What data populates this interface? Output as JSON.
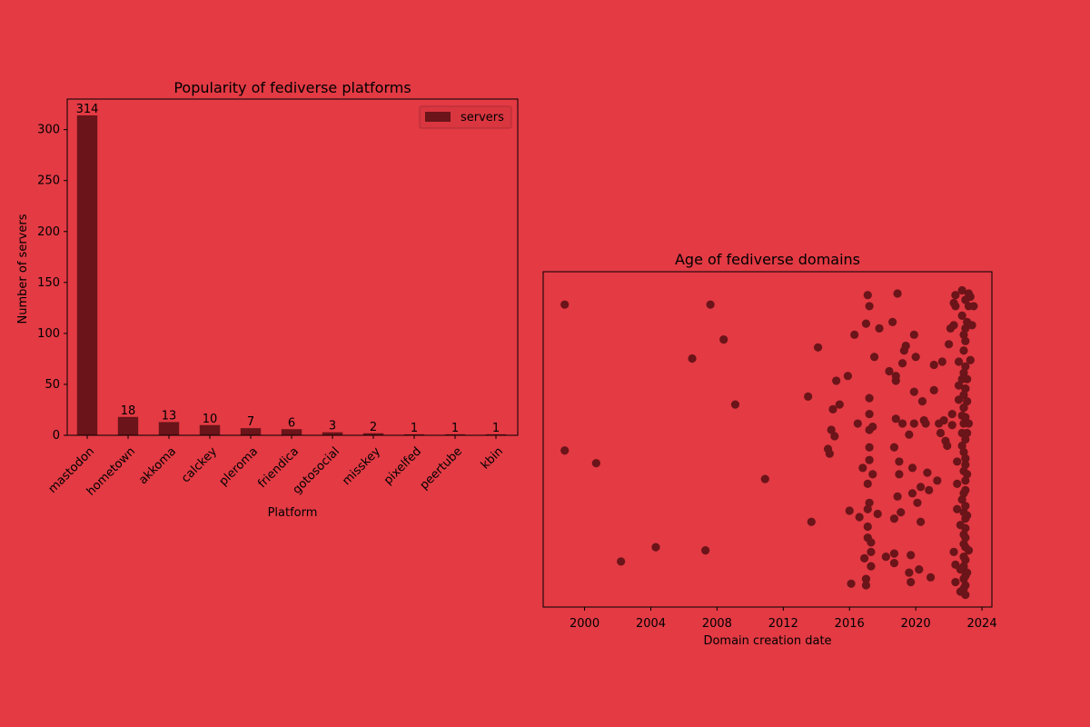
{
  "colors": {
    "background": "#e33a44",
    "mark": "#6b1419",
    "legend_bg": "#d93640"
  },
  "chart_data": [
    {
      "type": "bar",
      "title": "Popularity of fediverse platforms",
      "xlabel": "Platform",
      "ylabel": "Number of servers",
      "categories": [
        "mastodon",
        "hometown",
        "akkoma",
        "calckey",
        "pleroma",
        "friendica",
        "gotosocial",
        "misskey",
        "pixelfed",
        "peertube",
        "kbin"
      ],
      "series": [
        {
          "name": "servers",
          "values": [
            314,
            18,
            13,
            10,
            7,
            6,
            3,
            2,
            1,
            1,
            1
          ]
        }
      ],
      "value_labels": [
        "314",
        "18",
        "13",
        "10",
        "7",
        "6",
        "3",
        "2",
        "1",
        "1",
        "1"
      ],
      "yticks": [
        "0",
        "50",
        "100",
        "150",
        "200",
        "250",
        "300"
      ],
      "ylim": [
        0,
        330
      ],
      "legend": "top-right",
      "grid": false
    },
    {
      "type": "scatter",
      "title": "Age of fediverse domains",
      "xlabel": "Domain creation date",
      "ylabel": "",
      "xticks": [
        "2000",
        "2004",
        "2008",
        "2012",
        "2016",
        "2020",
        "2024"
      ],
      "xlim": [
        1997.5,
        2024.6
      ],
      "y_axis_visible": false,
      "grid": false,
      "x": [
        1998.8,
        1998.8,
        2000.7,
        2002.2,
        2004.3,
        2006.5,
        2007.3,
        2007.6,
        2008.4,
        2009.1,
        2010.9,
        2013.5,
        2013.7,
        2014.1,
        2014.7,
        2014.8,
        2014.9,
        2015.0,
        2015.1,
        2015.2,
        2015.4,
        2015.9,
        2016.0,
        2016.1,
        2016.3,
        2016.5,
        2016.6,
        2016.8,
        2016.9,
        2017.0,
        2017.1,
        2017.2,
        2017.5,
        2017.7,
        2017.8,
        2018.2,
        2018.4,
        2018.6,
        2018.8,
        2018.9,
        2019.2,
        2019.4,
        2019.6,
        2019.9,
        2020.1,
        2020.3,
        2020.5,
        2020.8,
        2021.1,
        2017.0,
        2017.0,
        2017.1,
        2017.1,
        2017.1,
        2017.1,
        2017.2,
        2017.2,
        2017.2,
        2017.2,
        2017.2,
        2017.2,
        2017.3,
        2017.3,
        2017.3,
        2017.4,
        2017.4,
        2018.7,
        2018.7,
        2018.7,
        2018.7,
        2018.8,
        2018.8,
        2018.9,
        2019.0,
        2019.0,
        2019.1,
        2019.2,
        2019.3,
        2019.6,
        2019.7,
        2019.7,
        2019.8,
        2019.8,
        2019.9,
        2019.9,
        2020.0,
        2020.2,
        2020.3,
        2020.4,
        2020.6,
        2020.7,
        2020.9,
        2021.1,
        2021.3,
        2021.4,
        2021.5,
        2021.6,
        2021.7,
        2021.8,
        2021.9,
        2022.0,
        2022.1,
        2022.2,
        2022.2,
        2022.3,
        2022.3,
        2022.3,
        2022.4,
        2022.4,
        2022.4,
        2022.4,
        2022.5,
        2022.5,
        2022.5,
        2022.6,
        2022.6,
        2022.6,
        2022.7,
        2022.7,
        2022.7,
        2022.8,
        2022.8,
        2022.8,
        2022.8,
        2022.8,
        2022.8,
        2022.9,
        2022.9,
        2022.9,
        2022.9,
        2022.9,
        2022.9,
        2022.9,
        2022.9,
        2022.9,
        2022.9,
        2022.9,
        2022.9,
        2022.9,
        2022.9,
        2022.9,
        2023.0,
        2023.0,
        2023.0,
        2023.0,
        2023.0,
        2023.0,
        2023.0,
        2023.0,
        2023.0,
        2023.0,
        2023.0,
        2023.0,
        2023.0,
        2023.0,
        2023.0,
        2023.0,
        2023.0,
        2023.0,
        2023.0,
        2023.0,
        2023.1,
        2023.1,
        2023.1,
        2023.1,
        2023.1,
        2023.1,
        2023.2,
        2023.2,
        2023.2,
        2023.3,
        2023.3,
        2023.4,
        2023.5,
        2023.1,
        2023.0,
        2022.9,
        2022.8,
        2023.2,
        2023.0,
        2022.9
      ],
      "y": [
        0.925,
        0.465,
        0.425,
        0.115,
        0.16,
        0.755,
        0.15,
        0.925,
        0.815,
        0.61,
        0.375,
        0.635,
        0.24,
        0.79,
        0.47,
        0.455,
        0.53,
        0.595,
        0.51,
        0.685,
        0.61,
        0.7,
        0.275,
        0.045,
        0.83,
        0.55,
        0.255,
        0.41,
        0.125,
        0.865,
        0.955,
        0.3,
        0.76,
        0.265,
        0.85,
        0.13,
        0.715,
        0.87,
        0.685,
        0.96,
        0.74,
        0.795,
        0.515,
        0.65,
        0.3,
        0.35,
        0.56,
        0.34,
        0.735,
        0.04,
        0.06,
        0.19,
        0.225,
        0.28,
        0.36,
        0.435,
        0.475,
        0.53,
        0.58,
        0.63,
        0.92,
        0.1,
        0.145,
        0.175,
        0.39,
        0.54,
        0.11,
        0.14,
        0.25,
        0.475,
        0.565,
        0.7,
        0.32,
        0.39,
        0.43,
        0.27,
        0.55,
        0.78,
        0.08,
        0.05,
        0.135,
        0.33,
        0.41,
        0.55,
        0.83,
        0.76,
        0.09,
        0.24,
        0.62,
        0.55,
        0.395,
        0.065,
        0.655,
        0.37,
        0.55,
        0.52,
        0.745,
        0.56,
        0.495,
        0.48,
        0.8,
        0.85,
        0.545,
        0.58,
        0.86,
        0.93,
        0.145,
        0.105,
        0.92,
        0.955,
        0.05,
        0.28,
        0.36,
        0.43,
        0.625,
        0.745,
        0.67,
        0.02,
        0.09,
        0.23,
        0.31,
        0.48,
        0.52,
        0.69,
        0.89,
        0.97,
        0.03,
        0.06,
        0.1,
        0.13,
        0.17,
        0.2,
        0.27,
        0.33,
        0.4,
        0.46,
        0.55,
        0.6,
        0.64,
        0.71,
        0.78,
        0.01,
        0.04,
        0.07,
        0.12,
        0.16,
        0.19,
        0.22,
        0.25,
        0.29,
        0.34,
        0.37,
        0.42,
        0.44,
        0.5,
        0.57,
        0.66,
        0.73,
        0.81,
        0.85,
        0.94,
        0.08,
        0.26,
        0.39,
        0.52,
        0.69,
        0.87,
        0.15,
        0.55,
        0.92,
        0.75,
        0.95,
        0.86,
        0.92,
        0.62,
        0.66,
        0.6,
        0.575,
        0.96,
        0.44,
        0.83
      ]
    }
  ]
}
